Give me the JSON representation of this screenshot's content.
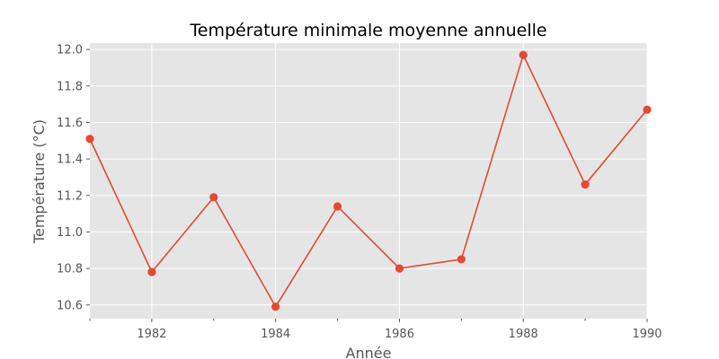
{
  "chart_data": {
    "type": "line",
    "title": "Température minimale moyenne annuelle",
    "xlabel": "Année",
    "ylabel": "Température (°C)",
    "x": [
      1981,
      1982,
      1983,
      1984,
      1985,
      1986,
      1987,
      1988,
      1989,
      1990
    ],
    "series": [
      {
        "values": [
          11.51,
          10.78,
          11.19,
          10.59,
          11.14,
          10.8,
          10.85,
          11.97,
          11.26,
          11.67
        ],
        "color": "#e24a33"
      }
    ],
    "xlim": [
      1981,
      1990
    ],
    "ylim": [
      10.525,
      12.035
    ],
    "xticks": [
      {
        "value": 1982,
        "label": "1982"
      },
      {
        "value": 1984,
        "label": "1984"
      },
      {
        "value": 1986,
        "label": "1986"
      },
      {
        "value": 1988,
        "label": "1988"
      },
      {
        "value": 1990,
        "label": "1990"
      }
    ],
    "xminor_ticks": [
      1981,
      1983,
      1985,
      1987,
      1989
    ],
    "yticks": [
      {
        "value": 10.6,
        "label": "10.6"
      },
      {
        "value": 10.8,
        "label": "10.8"
      },
      {
        "value": 11.0,
        "label": "11.0"
      },
      {
        "value": 11.2,
        "label": "11.2"
      },
      {
        "value": 11.4,
        "label": "11.4"
      },
      {
        "value": 11.6,
        "label": "11.6"
      },
      {
        "value": 11.8,
        "label": "11.8"
      },
      {
        "value": 12.0,
        "label": "12.0"
      }
    ],
    "grid": true,
    "style": "ggplot",
    "plot_background": "#e5e5e5",
    "grid_color": "#ffffff"
  }
}
